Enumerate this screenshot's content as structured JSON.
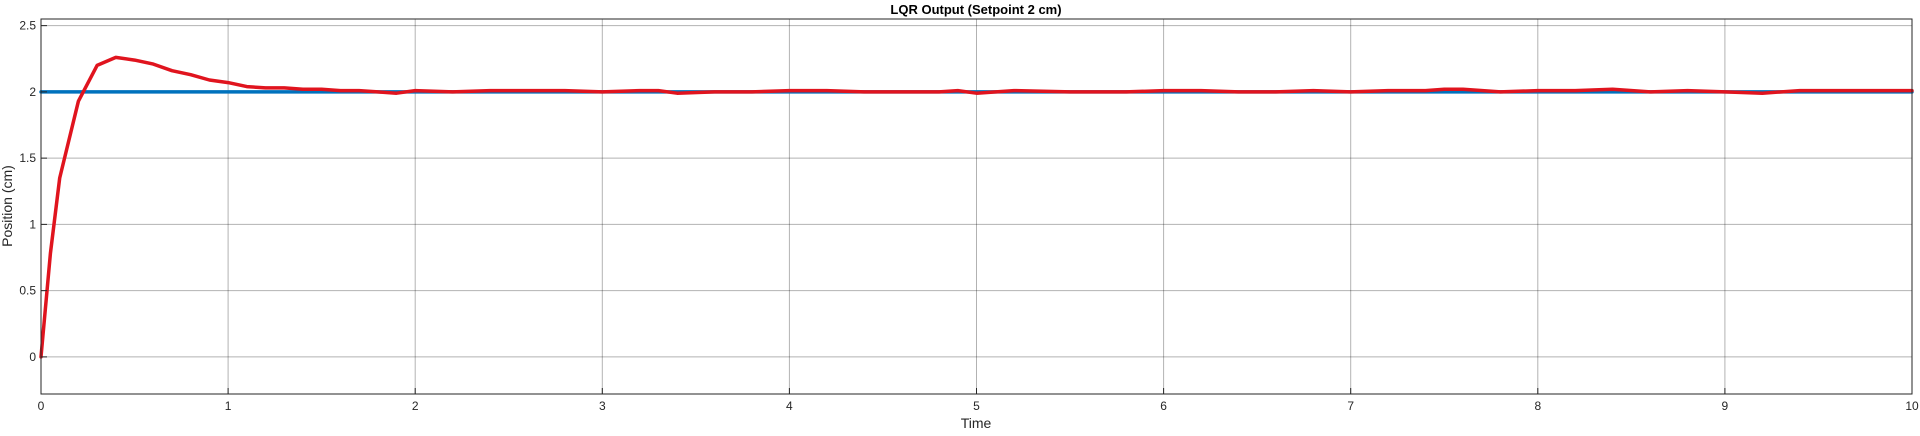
{
  "chart_data": {
    "type": "line",
    "title": "LQR Output (Setpoint 2 cm)",
    "xlabel": "Time",
    "ylabel": "Position (cm)",
    "xlim": [
      0,
      10
    ],
    "ylim": [
      -0.28,
      2.55
    ],
    "xticks": [
      "0",
      "1",
      "2",
      "3",
      "4",
      "5",
      "6",
      "7",
      "8",
      "9",
      "10"
    ],
    "yticks": [
      "0",
      "0.5",
      "1",
      "1.5",
      "2",
      "2.5"
    ],
    "grid": true,
    "series": [
      {
        "color": "#0072BD",
        "x": [
          0,
          10
        ],
        "y": [
          2.0,
          2.0
        ]
      },
      {
        "color": "#E0141E",
        "x": [
          0,
          0.05,
          0.1,
          0.2,
          0.3,
          0.4,
          0.5,
          0.6,
          0.7,
          0.8,
          0.9,
          1.0,
          1.1,
          1.2,
          1.3,
          1.4,
          1.5,
          1.6,
          1.7,
          1.8,
          1.9,
          2.0,
          2.2,
          2.4,
          2.6,
          2.8,
          3.0,
          3.2,
          3.3,
          3.4,
          3.6,
          3.8,
          4.0,
          4.2,
          4.4,
          4.6,
          4.8,
          4.9,
          5.0,
          5.2,
          5.5,
          5.8,
          6.0,
          6.2,
          6.4,
          6.6,
          6.8,
          7.0,
          7.2,
          7.4,
          7.5,
          7.6,
          7.8,
          8.0,
          8.2,
          8.4,
          8.6,
          8.8,
          9.0,
          9.2,
          9.4,
          9.6,
          9.8,
          10.0
        ],
        "y": [
          0,
          0.78,
          1.35,
          1.93,
          2.2,
          2.26,
          2.24,
          2.21,
          2.16,
          2.13,
          2.09,
          2.07,
          2.04,
          2.03,
          2.03,
          2.02,
          2.02,
          2.01,
          2.01,
          2.0,
          1.99,
          2.01,
          2.0,
          2.01,
          2.01,
          2.01,
          2.0,
          2.01,
          2.01,
          1.99,
          2.0,
          2.0,
          2.01,
          2.01,
          2.0,
          2.0,
          2.0,
          2.01,
          1.99,
          2.01,
          2.0,
          2.0,
          2.01,
          2.01,
          2.0,
          2.0,
          2.01,
          2.0,
          2.01,
          2.01,
          2.02,
          2.02,
          2.0,
          2.01,
          2.01,
          2.02,
          2.0,
          2.01,
          2.0,
          1.99,
          2.01,
          2.01,
          2.01,
          2.01
        ]
      }
    ]
  }
}
